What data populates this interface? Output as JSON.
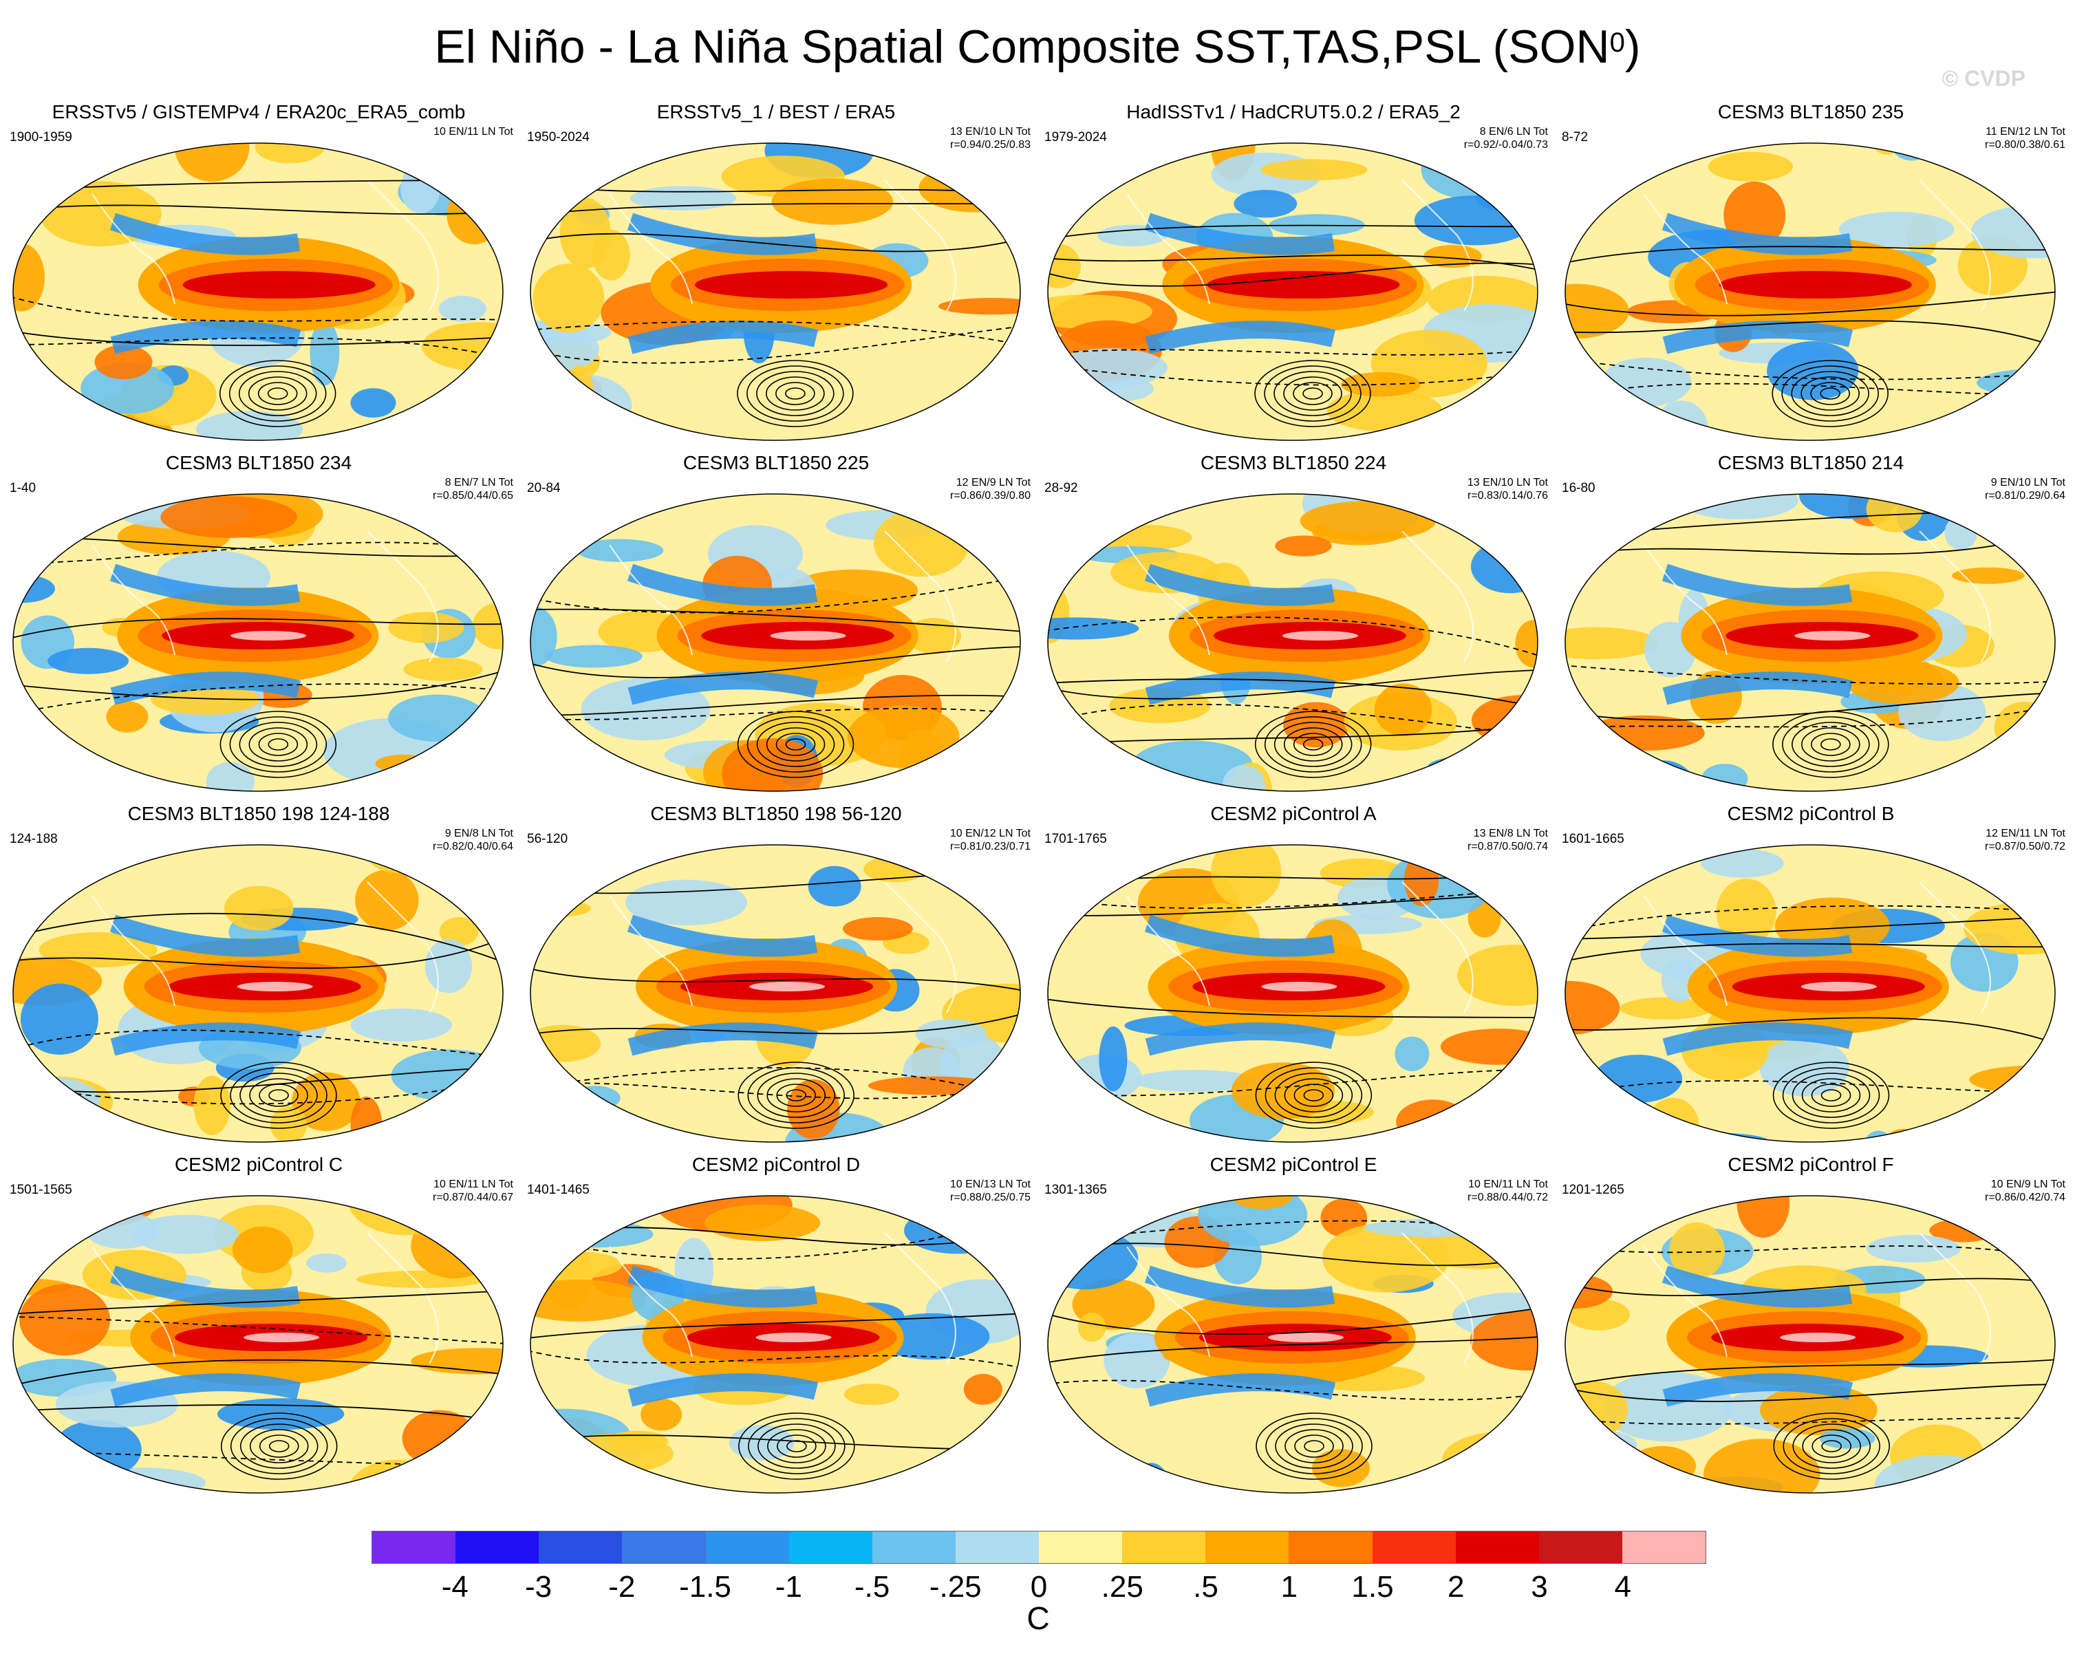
{
  "title": "El Niño - La Niña Spatial Composite SST,TAS,PSL (SON",
  "title_superscript": "0",
  "title_close": ")",
  "watermark": "© CVDP",
  "panels": [
    {
      "title": "ERSSTv5 / GISTEMPv4 / ERA20c_ERA5_comb",
      "years": "1900-1959",
      "counts": "10 EN/11 LN Tot",
      "r": "",
      "variant": 0
    },
    {
      "title": "ERSSTv5_1 / BEST / ERA5",
      "years": "1950-2024",
      "counts": "13 EN/10 LN Tot",
      "r": "r=0.94/0.25/0.83",
      "variant": 1
    },
    {
      "title": "HadISSTv1 / HadCRUT5.0.2 / ERA5_2",
      "years": "1979-2024",
      "counts": "8 EN/6 LN Tot",
      "r": "r=0.92/-0.04/0.73",
      "variant": 2
    },
    {
      "title": "CESM3 BLT1850 235",
      "years": "8-72",
      "counts": "11 EN/12 LN Tot",
      "r": "r=0.80/0.38/0.61",
      "variant": 3
    },
    {
      "title": "CESM3 BLT1850 234",
      "years": "1-40",
      "counts": "8 EN/7 LN Tot",
      "r": "r=0.85/0.44/0.65",
      "variant": 4
    },
    {
      "title": "CESM3 BLT1850 225",
      "years": "20-84",
      "counts": "12 EN/9 LN Tot",
      "r": "r=0.86/0.39/0.80",
      "variant": 5
    },
    {
      "title": "CESM3 BLT1850 224",
      "years": "28-92",
      "counts": "13 EN/10 LN Tot",
      "r": "r=0.83/0.14/0.76",
      "variant": 6
    },
    {
      "title": "CESM3 BLT1850 214",
      "years": "16-80",
      "counts": "9 EN/10 LN Tot",
      "r": "r=0.81/0.29/0.64",
      "variant": 7
    },
    {
      "title": "CESM3 BLT1850 198 124-188",
      "years": "124-188",
      "counts": "9 EN/8 LN Tot",
      "r": "r=0.82/0.40/0.64",
      "variant": 8
    },
    {
      "title": "CESM3 BLT1850 198 56-120",
      "years": "56-120",
      "counts": "10 EN/12 LN Tot",
      "r": "r=0.81/0.23/0.71",
      "variant": 9
    },
    {
      "title": "CESM2 piControl A",
      "years": "1701-1765",
      "counts": "13 EN/8 LN Tot",
      "r": "r=0.87/0.50/0.74",
      "variant": 10
    },
    {
      "title": "CESM2 piControl B",
      "years": "1601-1665",
      "counts": "12 EN/11 LN Tot",
      "r": "r=0.87/0.50/0.72",
      "variant": 11
    },
    {
      "title": "CESM2 piControl C",
      "years": "1501-1565",
      "counts": "10 EN/11 LN Tot",
      "r": "r=0.87/0.44/0.67",
      "variant": 12
    },
    {
      "title": "CESM2 piControl D",
      "years": "1401-1465",
      "counts": "10 EN/13 LN Tot",
      "r": "r=0.88/0.25/0.75",
      "variant": 13
    },
    {
      "title": "CESM2 piControl E",
      "years": "1301-1365",
      "counts": "10 EN/11 LN Tot",
      "r": "r=0.88/0.44/0.72",
      "variant": 14
    },
    {
      "title": "CESM2 piControl F",
      "years": "1201-1265",
      "counts": "10 EN/9 LN Tot",
      "r": "r=0.86/0.42/0.74",
      "variant": 15
    }
  ],
  "colorbar": {
    "unit": "C",
    "tick_labels": [
      "-4",
      "-3",
      "-2",
      "-1.5",
      "-1",
      "-.5",
      "-.25",
      "0",
      ".25",
      ".5",
      "1",
      "1.5",
      "2",
      "3",
      "4"
    ],
    "colors": [
      "#7a28f0",
      "#1e10f0",
      "#2850e0",
      "#3a78e8",
      "#2a94f0",
      "#08b4f4",
      "#6cc2ee",
      "#b0dcf2",
      "#fff4a0",
      "#ffd030",
      "#ffa800",
      "#ff7800",
      "#f83010",
      "#e00000",
      "#c81818",
      "#ffb4b4"
    ]
  }
}
